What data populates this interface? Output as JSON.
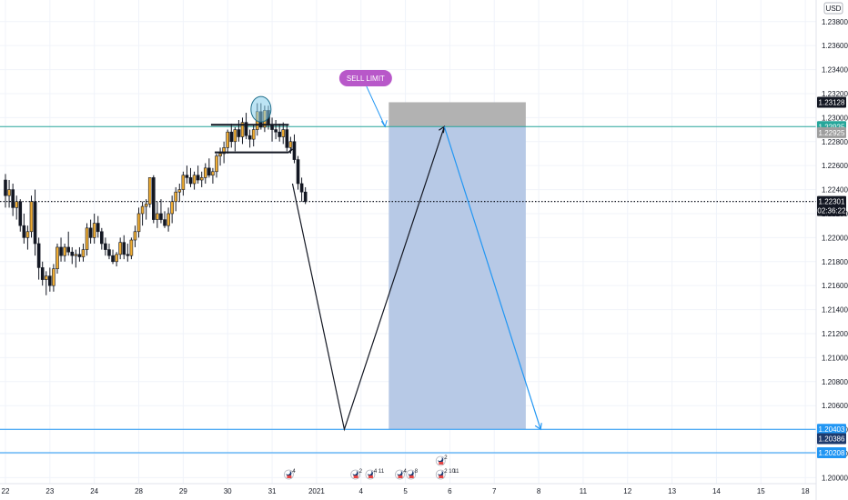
{
  "chart_data": {
    "type": "candlestick",
    "currency": "USD",
    "y_axis": {
      "min": 1.1995,
      "max": 1.2398,
      "ticks": [
        "1.23800",
        "1.23600",
        "1.23400",
        "1.23200",
        "1.23000",
        "1.22800",
        "1.22600",
        "1.22400",
        "1.22200",
        "1.22000",
        "1.21800",
        "1.21600",
        "1.21400",
        "1.21200",
        "1.21000",
        "1.20800",
        "1.20600",
        "1.20400",
        "1.20200",
        "1.20000"
      ]
    },
    "x_axis": {
      "ticks": [
        {
          "label": "22",
          "bar": 0
        },
        {
          "label": "23",
          "bar": 12
        },
        {
          "label": "24",
          "bar": 24
        },
        {
          "label": "28",
          "bar": 36
        },
        {
          "label": "29",
          "bar": 48
        },
        {
          "label": "30",
          "bar": 60
        },
        {
          "label": "31",
          "bar": 72
        },
        {
          "label": "2021",
          "bar": 84
        },
        {
          "label": "4",
          "bar": 96
        },
        {
          "label": "5",
          "bar": 108
        },
        {
          "label": "6",
          "bar": 120
        },
        {
          "label": "7",
          "bar": 132
        },
        {
          "label": "8",
          "bar": 144
        },
        {
          "label": "11",
          "bar": 156
        },
        {
          "label": "12",
          "bar": 168
        },
        {
          "label": "13",
          "bar": 180
        },
        {
          "label": "14",
          "bar": 192
        },
        {
          "label": "15",
          "bar": 204
        },
        {
          "label": "18",
          "bar": 216
        }
      ]
    },
    "candles": [
      [
        1.2248,
        1.2253,
        1.2225,
        1.2235
      ],
      [
        1.2235,
        1.2248,
        1.2225,
        1.224
      ],
      [
        1.224,
        1.2245,
        1.2218,
        1.2225
      ],
      [
        1.2225,
        1.2235,
        1.2215,
        1.223
      ],
      [
        1.223,
        1.2232,
        1.2205,
        1.221
      ],
      [
        1.221,
        1.222,
        1.2195,
        1.22
      ],
      [
        1.22,
        1.221,
        1.219,
        1.2205
      ],
      [
        1.2205,
        1.2235,
        1.22,
        1.223
      ],
      [
        1.223,
        1.224,
        1.2185,
        1.2195
      ],
      [
        1.2195,
        1.22,
        1.2165,
        1.2175
      ],
      [
        1.2175,
        1.218,
        1.216,
        1.2165
      ],
      [
        1.2165,
        1.2172,
        1.2152,
        1.2168
      ],
      [
        1.2168,
        1.2175,
        1.2155,
        1.216
      ],
      [
        1.216,
        1.2178,
        1.2155,
        1.2174
      ],
      [
        1.2174,
        1.2195,
        1.217,
        1.2192
      ],
      [
        1.2192,
        1.22,
        1.218,
        1.2185
      ],
      [
        1.2185,
        1.2195,
        1.218,
        1.2192
      ],
      [
        1.2192,
        1.2205,
        1.2185,
        1.2188
      ],
      [
        1.2188,
        1.2192,
        1.2178,
        1.2185
      ],
      [
        1.2185,
        1.219,
        1.2175,
        1.2186
      ],
      [
        1.2186,
        1.2192,
        1.218,
        1.2184
      ],
      [
        1.2184,
        1.2195,
        1.218,
        1.219
      ],
      [
        1.219,
        1.2212,
        1.2185,
        1.2208
      ],
      [
        1.2208,
        1.2215,
        1.2195,
        1.22
      ],
      [
        1.22,
        1.222,
        1.2195,
        1.2212
      ],
      [
        1.2212,
        1.2218,
        1.22,
        1.2205
      ],
      [
        1.2205,
        1.2208,
        1.219,
        1.2195
      ],
      [
        1.2195,
        1.22,
        1.2185,
        1.219
      ],
      [
        1.219,
        1.2195,
        1.2182,
        1.2185
      ],
      [
        1.2185,
        1.219,
        1.2178,
        1.218
      ],
      [
        1.218,
        1.2188,
        1.2176,
        1.2186
      ],
      [
        1.2186,
        1.22,
        1.2182,
        1.2196
      ],
      [
        1.2196,
        1.2202,
        1.2182,
        1.2186
      ],
      [
        1.2186,
        1.2195,
        1.218,
        1.2185
      ],
      [
        1.2185,
        1.22,
        1.2182,
        1.2198
      ],
      [
        1.2198,
        1.221,
        1.2192,
        1.2205
      ],
      [
        1.2205,
        1.2225,
        1.22,
        1.222
      ],
      [
        1.222,
        1.223,
        1.221,
        1.2226
      ],
      [
        1.2226,
        1.2232,
        1.2215,
        1.2228
      ],
      [
        1.2228,
        1.225,
        1.2225,
        1.225
      ],
      [
        1.225,
        1.2252,
        1.2212,
        1.2215
      ],
      [
        1.2215,
        1.223,
        1.2208,
        1.222
      ],
      [
        1.222,
        1.2232,
        1.2212,
        1.2215
      ],
      [
        1.2215,
        1.2222,
        1.2208,
        1.221
      ],
      [
        1.221,
        1.2225,
        1.2205,
        1.222
      ],
      [
        1.222,
        1.2235,
        1.2212,
        1.223
      ],
      [
        1.223,
        1.2242,
        1.2222,
        1.2238
      ],
      [
        1.2238,
        1.2245,
        1.223,
        1.224
      ],
      [
        1.224,
        1.2255,
        1.2235,
        1.2252
      ],
      [
        1.2252,
        1.226,
        1.2245,
        1.225
      ],
      [
        1.225,
        1.2258,
        1.2242,
        1.2245
      ],
      [
        1.2245,
        1.2255,
        1.224,
        1.2252
      ],
      [
        1.2252,
        1.226,
        1.2245,
        1.2248
      ],
      [
        1.2248,
        1.2255,
        1.2242,
        1.225
      ],
      [
        1.225,
        1.2262,
        1.2245,
        1.2258
      ],
      [
        1.2258,
        1.2266,
        1.225,
        1.2252
      ],
      [
        1.2252,
        1.2258,
        1.2245,
        1.2255
      ],
      [
        1.2255,
        1.227,
        1.225,
        1.2268
      ],
      [
        1.2268,
        1.2275,
        1.226,
        1.227
      ],
      [
        1.227,
        1.228,
        1.2262,
        1.2275
      ],
      [
        1.2275,
        1.229,
        1.227,
        1.2288
      ],
      [
        1.2288,
        1.2295,
        1.2275,
        1.228
      ],
      [
        1.228,
        1.2292,
        1.2272,
        1.229
      ],
      [
        1.229,
        1.2298,
        1.228,
        1.2284
      ],
      [
        1.2284,
        1.23,
        1.2278,
        1.2296
      ],
      [
        1.2296,
        1.2304,
        1.2282,
        1.2285
      ],
      [
        1.2285,
        1.229,
        1.2275,
        1.2282
      ],
      [
        1.2282,
        1.2294,
        1.2276,
        1.229
      ],
      [
        1.229,
        1.2312,
        1.2285,
        1.2305
      ],
      [
        1.2305,
        1.2312,
        1.229,
        1.2292
      ],
      [
        1.2292,
        1.231,
        1.2288,
        1.2306
      ],
      [
        1.2306,
        1.231,
        1.229,
        1.2294
      ],
      [
        1.2294,
        1.23,
        1.228,
        1.229
      ],
      [
        1.229,
        1.2298,
        1.2282,
        1.2288
      ],
      [
        1.2288,
        1.2295,
        1.228,
        1.2284
      ],
      [
        1.2284,
        1.2296,
        1.2278,
        1.229
      ],
      [
        1.229,
        1.2294,
        1.2272,
        1.2275
      ],
      [
        1.2275,
        1.2284,
        1.227,
        1.228
      ],
      [
        1.228,
        1.2286,
        1.2262,
        1.2265
      ],
      [
        1.2265,
        1.2268,
        1.224,
        1.2245
      ],
      [
        1.2245,
        1.225,
        1.223,
        1.2238
      ],
      [
        1.2238,
        1.2242,
        1.2228,
        1.223
      ]
    ],
    "levels": [
      {
        "name": "sell-limit-line",
        "price": 1.22925,
        "color": "#26a69a"
      },
      {
        "name": "current-price-line",
        "price": 1.22301,
        "color": "#131722",
        "style": "dotted"
      },
      {
        "name": "target-line-1",
        "price": 1.20403,
        "color": "#2196f3"
      },
      {
        "name": "target-line-2",
        "price": 1.20208,
        "color": "#2196f3"
      }
    ],
    "price_tags": [
      {
        "text": "1.23128",
        "price": 1.23128,
        "bg": "#131722"
      },
      {
        "text": "1.22925",
        "price": 1.22925,
        "bg": "#26a69a"
      },
      {
        "text": "1.22925",
        "price": 1.22875,
        "bg": "#9e9e9e"
      },
      {
        "text": "1.22301",
        "price": 1.22301,
        "bg": "#131722"
      },
      {
        "text": "02:36:22",
        "price": 1.22225,
        "bg": "#131722"
      },
      {
        "text": "1.20403",
        "price": 1.20403,
        "bg": "#2196f3"
      },
      {
        "text": "1.20386",
        "price": 1.20325,
        "bg": "#1e3a6d"
      },
      {
        "text": "1.20208",
        "price": 1.20208,
        "bg": "#2196f3"
      }
    ],
    "annotations": {
      "label": "SELL LIMIT",
      "stop_zone": {
        "bar_start": 104,
        "bar_end": 141,
        "top": 1.23128,
        "bottom": 1.22925
      },
      "target_zone": {
        "bar_start": 104,
        "bar_end": 141,
        "top": 1.22925,
        "bottom": 1.20403
      },
      "resistance_top": {
        "bar_start": 56,
        "bar_end": 77,
        "price": 1.2294
      },
      "resistance_low": {
        "bar_start": 57,
        "bar_end": 77,
        "price": 1.2271
      },
      "zigzag": [
        [
          78,
          1.2245
        ],
        [
          92,
          1.20403
        ],
        [
          119,
          1.22925
        ]
      ],
      "projection": [
        [
          119,
          1.22925
        ],
        [
          145,
          1.20403
        ]
      ],
      "label_pointer": [
        [
          98,
          1.2326
        ],
        [
          103,
          1.22925
        ]
      ],
      "circle": {
        "bar": 69,
        "price": 1.2307
      }
    },
    "events": [
      {
        "bar": 77,
        "labels": [
          "4"
        ]
      },
      {
        "bar": 95,
        "labels": [
          "2"
        ]
      },
      {
        "bar": 99,
        "labels": [
          "4",
          "11"
        ]
      },
      {
        "bar": 107,
        "labels": [
          "4"
        ]
      },
      {
        "bar": 110,
        "labels": [
          "8"
        ]
      },
      {
        "bar": 118,
        "labels": [
          "2",
          "10",
          "11"
        ]
      }
    ],
    "events_top": [
      {
        "bar": 118,
        "labels": [
          "2"
        ]
      }
    ]
  }
}
